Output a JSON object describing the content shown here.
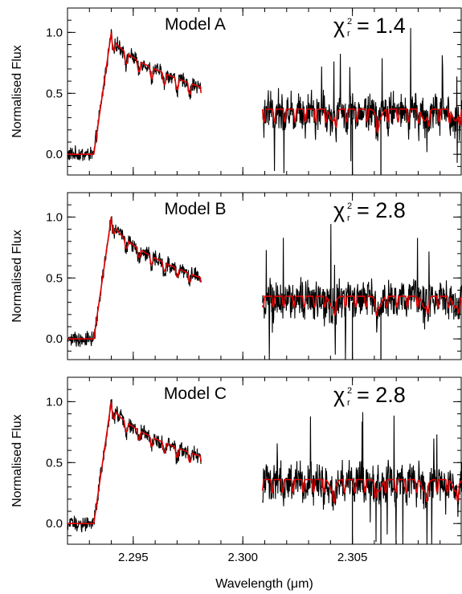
{
  "chart_data": {
    "type": "line",
    "xlabel": "Wavelength (μm)",
    "xlim": [
      2.292,
      2.31
    ],
    "xticks": [
      2.295,
      2.3,
      2.305
    ],
    "xtick_labels": [
      "2.295",
      "2.300",
      "2.305"
    ],
    "ylim": [
      -0.17,
      1.2
    ],
    "yticks": [
      0.0,
      0.5,
      1.0
    ],
    "ytick_labels": [
      "0.0",
      "0.5",
      "1.0"
    ],
    "ylabel": "Normalised Flux",
    "colors": {
      "observed": "#000000",
      "model": "#e00000"
    },
    "panels": [
      {
        "model_label": "Model A",
        "chi_symbol": "χ",
        "chi_sup": "2",
        "chi_sub": "r",
        "chi_value": "= 1.4",
        "series": [
          {
            "role": "observed",
            "segments": [
              [
                2.292,
                2.2981
              ],
              [
                2.3009,
                2.31
              ]
            ],
            "noise_left": 0.05,
            "noise_right": 0.12
          },
          {
            "role": "model",
            "segments": [
              [
                2.292,
                2.2981
              ],
              [
                2.3009,
                2.31
              ]
            ]
          }
        ],
        "model_profile": {
          "continuum_left": 0.0,
          "edge_start": 2.2932,
          "peak_x": 2.294,
          "peak_y": 1.0,
          "decay_to": 0.55,
          "right_level": 0.37,
          "band_depth_left": 0.09,
          "band_depth_right": 0.13
        }
      },
      {
        "model_label": "Model B",
        "chi_symbol": "χ",
        "chi_sup": "2",
        "chi_sub": "r",
        "chi_value": "= 2.8",
        "series": [
          {
            "role": "observed",
            "segments": [
              [
                2.292,
                2.2981
              ],
              [
                2.3009,
                2.31
              ]
            ],
            "noise_left": 0.05,
            "noise_right": 0.12
          },
          {
            "role": "model",
            "segments": [
              [
                2.292,
                2.2981
              ],
              [
                2.3009,
                2.31
              ]
            ]
          }
        ],
        "model_profile": {
          "continuum_left": 0.0,
          "edge_start": 2.2932,
          "peak_x": 2.294,
          "peak_y": 1.0,
          "decay_to": 0.5,
          "right_level": 0.35,
          "band_depth_left": 0.07,
          "band_depth_right": 0.11
        }
      },
      {
        "model_label": "Model C",
        "chi_symbol": "χ",
        "chi_sup": "2",
        "chi_sub": "r",
        "chi_value": "= 2.8",
        "series": [
          {
            "role": "observed",
            "segments": [
              [
                2.292,
                2.2981
              ],
              [
                2.3009,
                2.31
              ]
            ],
            "noise_left": 0.05,
            "noise_right": 0.12
          },
          {
            "role": "model",
            "segments": [
              [
                2.292,
                2.2981
              ],
              [
                2.3009,
                2.31
              ]
            ]
          }
        ],
        "model_profile": {
          "continuum_left": 0.0,
          "edge_start": 2.2932,
          "peak_x": 2.294,
          "peak_y": 1.0,
          "decay_to": 0.55,
          "right_level": 0.36,
          "band_depth_left": 0.08,
          "band_depth_right": 0.13
        }
      }
    ]
  }
}
